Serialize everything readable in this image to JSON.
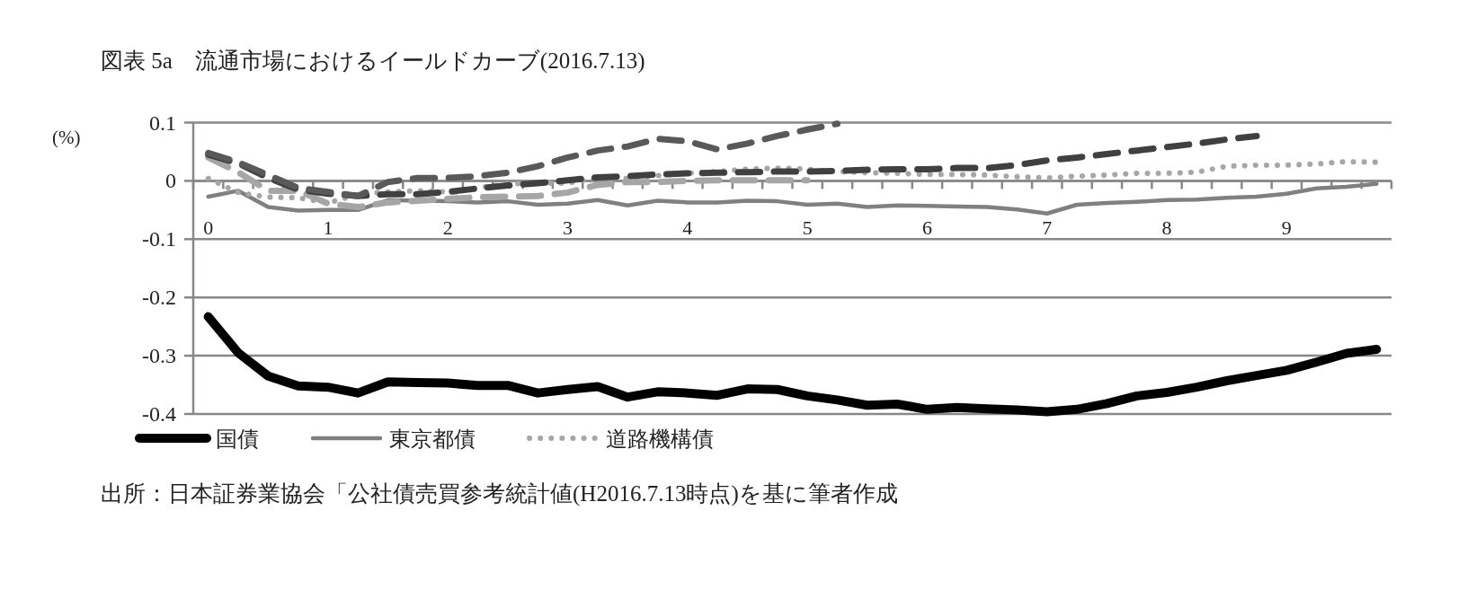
{
  "chart_data": {
    "type": "line",
    "title": "図表 5a　流通市場におけるイールドカーブ(2016.7.13)",
    "ylabel": "(%)",
    "annotations": [
      "出所：日本証券業協会「公社債売買参考統計値(H2016.7.13時点)を基に筆者作成"
    ],
    "categories": [
      "0",
      null,
      null,
      null,
      "1",
      null,
      null,
      null,
      "2",
      null,
      null,
      null,
      "3",
      null,
      null,
      null,
      "4",
      null,
      null,
      null,
      "5",
      null,
      null,
      null,
      "6",
      null,
      null,
      null,
      "7",
      null,
      null,
      null,
      "8",
      null,
      null,
      null,
      "9",
      null,
      null,
      null
    ],
    "ylim": [
      -0.4,
      0.1
    ],
    "yticks": [
      -0.4,
      -0.3,
      -0.2,
      -0.1,
      0,
      0.1
    ],
    "grid": "y",
    "legend": "bottom",
    "marker": "none",
    "series": [
      {
        "name": "国債",
        "color": "#000000",
        "line_style": "solid",
        "values": [
          -0.233,
          -0.295,
          -0.335,
          -0.352,
          -0.354,
          -0.364,
          -0.345,
          -0.346,
          -0.347,
          -0.351,
          -0.351,
          -0.364,
          -0.358,
          -0.353,
          -0.371,
          -0.362,
          -0.364,
          -0.368,
          -0.357,
          -0.358,
          -0.369,
          -0.376,
          -0.385,
          -0.383,
          -0.392,
          -0.389,
          -0.391,
          -0.393,
          -0.396,
          -0.392,
          -0.382,
          -0.369,
          -0.363,
          -0.354,
          -0.343,
          -0.334,
          -0.325,
          -0.311,
          -0.296,
          -0.289
        ]
      },
      {
        "name": "東京都債",
        "color": "#808080",
        "line_style": "solid",
        "values": [
          -0.027,
          -0.017,
          -0.045,
          -0.051,
          -0.05,
          -0.05,
          -0.033,
          -0.034,
          -0.035,
          -0.037,
          -0.035,
          -0.041,
          -0.039,
          -0.033,
          -0.042,
          -0.034,
          -0.037,
          -0.037,
          -0.034,
          -0.035,
          -0.041,
          -0.039,
          -0.045,
          -0.042,
          -0.043,
          -0.044,
          -0.045,
          -0.049,
          -0.056,
          -0.041,
          -0.038,
          -0.036,
          -0.033,
          -0.032,
          -0.029,
          -0.027,
          -0.022,
          -0.013,
          -0.01,
          -0.005
        ]
      },
      {
        "name": "道路機構債",
        "color": "#a6a6a6",
        "line_style": "dotted",
        "values": [
          0.004,
          -0.02,
          -0.028,
          -0.029,
          -0.038,
          -0.023,
          -0.019,
          -0.017,
          -0.019,
          -0.012,
          -0.005,
          -0.004,
          -0.004,
          0.005,
          0.004,
          0.009,
          0.013,
          0.016,
          0.02,
          0.022,
          0.02,
          0.016,
          0.014,
          0.013,
          0.011,
          0.011,
          0.01,
          0.007,
          0.005,
          0.008,
          0.01,
          0.013,
          0.013,
          0.015,
          0.025,
          0.027,
          0.027,
          0.029,
          0.033,
          0.032
        ]
      },
      {
        "color": "#a6a6a6",
        "line_style": "dashed",
        "values": [
          0.04,
          0.015,
          -0.017,
          -0.017,
          -0.039,
          -0.045,
          -0.037,
          -0.034,
          -0.031,
          -0.028,
          -0.027,
          -0.026,
          -0.02,
          -0.007,
          -0.002,
          -0.002,
          0.0,
          0.001,
          0.001,
          0.001,
          0.001,
          null,
          null,
          null,
          null,
          null,
          null,
          null,
          null,
          null,
          null,
          null,
          null,
          null,
          null,
          null,
          null,
          null,
          null,
          null
        ]
      },
      {
        "color": "#404040",
        "line_style": "dashed",
        "values": [
          0.045,
          0.03,
          0.005,
          -0.015,
          -0.022,
          -0.026,
          -0.023,
          -0.023,
          -0.019,
          -0.013,
          -0.008,
          -0.004,
          0.001,
          0.006,
          0.008,
          0.011,
          0.013,
          0.014,
          0.015,
          0.016,
          0.016,
          0.017,
          0.019,
          0.02,
          0.02,
          0.022,
          0.022,
          0.027,
          0.035,
          0.04,
          0.046,
          0.052,
          0.058,
          0.064,
          0.071,
          0.077,
          null,
          null,
          null,
          null
        ]
      },
      {
        "color": "#595959",
        "line_style": "dashed",
        "values": [
          0.048,
          0.032,
          0.01,
          -0.012,
          -0.019,
          -0.026,
          -0.002,
          0.005,
          0.005,
          0.008,
          0.014,
          0.025,
          0.04,
          0.052,
          0.059,
          0.072,
          0.068,
          0.054,
          0.064,
          0.077,
          0.088,
          0.098,
          null,
          null,
          null,
          null,
          null,
          null,
          null,
          null,
          null,
          null,
          null,
          null,
          null,
          null,
          null,
          null,
          null,
          null
        ]
      }
    ]
  }
}
